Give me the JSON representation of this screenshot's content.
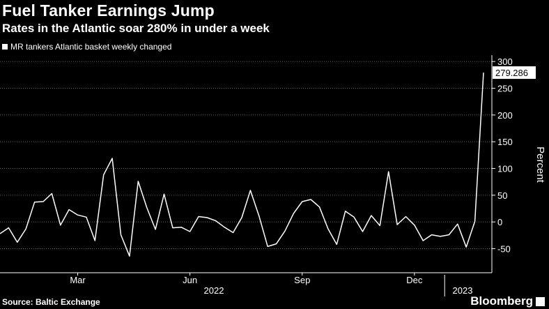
{
  "header": {
    "title": "Fuel Tanker Earnings Jump",
    "subtitle": "Rates in the Atlantic soar 280% in under a week"
  },
  "footer": {
    "source": "Source: Baltic Exchange",
    "brand": "Bloomberg"
  },
  "colors": {
    "background": "#000000",
    "line": "#ffffff",
    "grid": "#666666"
  },
  "chart_data": {
    "type": "line",
    "title": "Fuel Tanker Earnings Jump",
    "subtitle": "Rates in the Atlantic soar 280% in under a week",
    "ylabel": "Percent",
    "ylim": [
      -95,
      312
    ],
    "yticks": [
      300,
      250,
      200,
      150,
      100,
      50,
      0,
      -50
    ],
    "grid": true,
    "legend_position": "top-left",
    "xticks": [
      {
        "label": "Mar",
        "index": 9
      },
      {
        "label": "Jun",
        "index": 22
      },
      {
        "label": "Sep",
        "index": 35
      },
      {
        "label": "Dec",
        "index": 48
      }
    ],
    "xgroups": [
      {
        "label": "2022",
        "from": 0,
        "to": 51
      },
      {
        "label": "2023",
        "from": 52,
        "to": 55
      }
    ],
    "last_value_label": "279.286",
    "series": [
      {
        "name": "MR tankers Atlantic basket weekly changed",
        "values": [
          -22,
          -11,
          -38,
          -13,
          37,
          38,
          53,
          -6,
          23,
          13,
          9,
          -35,
          88,
          119,
          -24,
          -64,
          76,
          27,
          -14,
          52,
          -11,
          -10,
          -18,
          10,
          8,
          2,
          -10,
          -20,
          8,
          59,
          11,
          -46,
          -41,
          -17,
          16,
          38,
          42,
          28,
          -13,
          -42,
          20,
          9,
          -18,
          12,
          -7,
          94,
          -5,
          10,
          -6,
          -35,
          -24,
          -27,
          -24,
          -4,
          -47,
          1,
          279.286
        ]
      }
    ]
  }
}
